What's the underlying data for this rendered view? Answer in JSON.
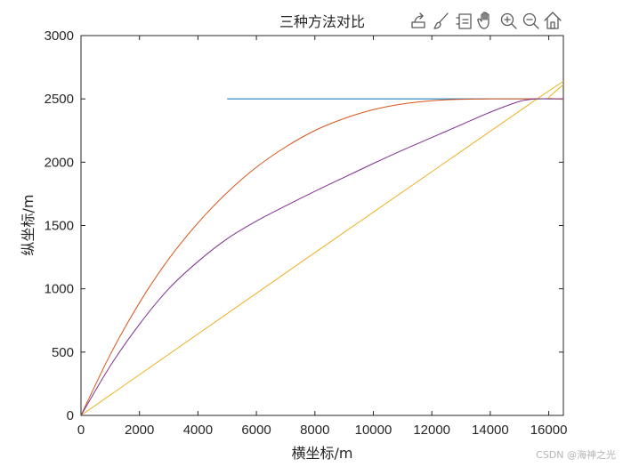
{
  "toolbar": {
    "icons": [
      "export-icon",
      "brush-icon",
      "legend-icon",
      "pan-hand-icon",
      "zoom-in-icon",
      "zoom-out-icon",
      "home-icon"
    ]
  },
  "watermark": "CSDN @海神之光",
  "chart_data": {
    "type": "line",
    "title": "三种方法对比",
    "xlabel": "横坐标/m",
    "ylabel": "纵坐标/m",
    "xlim": [
      0,
      16500
    ],
    "ylim": [
      0,
      3000
    ],
    "xticks": [
      0,
      2000,
      4000,
      6000,
      8000,
      10000,
      12000,
      14000,
      16000
    ],
    "yticks": [
      0,
      500,
      1000,
      1500,
      2000,
      2500,
      3000
    ],
    "grid": false,
    "series": [
      {
        "color": "#0072BD",
        "x": [
          5000,
          16500
        ],
        "y": [
          2500,
          2500
        ]
      },
      {
        "color": "#D95319",
        "x": [
          0,
          1000,
          2000,
          3000,
          4000,
          5000,
          6000,
          7000,
          8000,
          9000,
          10000,
          11000,
          12000,
          13000,
          14000,
          15000,
          15600,
          16000,
          16500
        ],
        "y": [
          0,
          480,
          890,
          1235,
          1520,
          1760,
          1960,
          2120,
          2250,
          2345,
          2415,
          2460,
          2485,
          2497,
          2500,
          2500,
          2500,
          2502,
          2500
        ]
      },
      {
        "color": "#EDB120",
        "x": [
          0,
          15600,
          16000,
          16500
        ],
        "y": [
          0,
          2500,
          2505,
          2495
        ]
      },
      {
        "color": "#7E2F8E",
        "x": [
          0,
          1000,
          2000,
          3000,
          4000,
          5000,
          6000,
          7000,
          8000,
          9000,
          10000,
          11000,
          12000,
          13000,
          14000,
          15000,
          15600,
          16000,
          16500
        ],
        "y": [
          0,
          390,
          720,
          1000,
          1215,
          1395,
          1535,
          1655,
          1770,
          1880,
          1990,
          2095,
          2195,
          2295,
          2395,
          2480,
          2500,
          2500,
          2500
        ]
      }
    ]
  }
}
